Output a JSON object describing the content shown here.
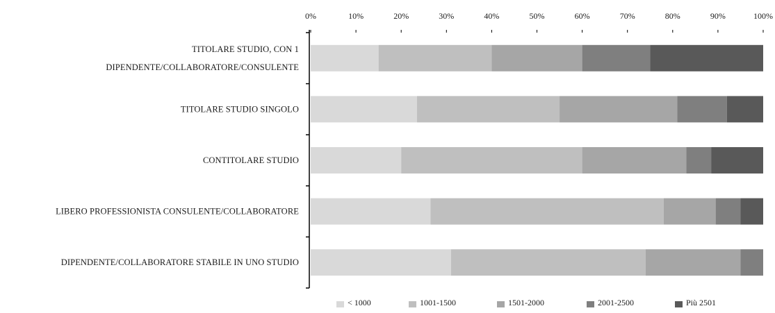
{
  "chart_data": {
    "type": "bar",
    "orientation": "horizontal",
    "stacked": true,
    "percent": true,
    "categories": [
      [
        "TITOLARE STUDIO, CON 1",
        "DIPENDENTE/COLLABORATORE/CONSULENTE"
      ],
      [
        "TITOLARE STUDIO SINGOLO"
      ],
      [
        "CONTITOLARE STUDIO"
      ],
      [
        "LIBERO PROFESSIONISTA  CONSULENTE/COLLABORATORE"
      ],
      [
        "DIPENDENTE/COLLABORATORE STABILE IN UNO STUDIO"
      ]
    ],
    "series": [
      {
        "name": "< 1000",
        "color": "#d9d9d9",
        "values": [
          15,
          23.5,
          20,
          26.5,
          31
        ]
      },
      {
        "name": "1001-1500",
        "color": "#bfbfbf",
        "values": [
          25,
          31.5,
          40,
          51.5,
          43
        ]
      },
      {
        "name": "1501-2000",
        "color": "#a6a6a6",
        "values": [
          20,
          26,
          23,
          11.5,
          21
        ]
      },
      {
        "name": "2001-2500",
        "color": "#7f7f7f",
        "values": [
          15,
          11,
          5.5,
          5.5,
          5
        ]
      },
      {
        "name": "Più 2501",
        "color": "#595959",
        "values": [
          25,
          8,
          11.5,
          5,
          0
        ]
      }
    ],
    "x_ticks": [
      "0%",
      "10%",
      "20%",
      "30%",
      "40%",
      "50%",
      "60%",
      "70%",
      "80%",
      "90%",
      "100%"
    ],
    "xlim": [
      0,
      100
    ],
    "x_axis_position": "top",
    "grid": false,
    "legend_position": "bottom"
  }
}
